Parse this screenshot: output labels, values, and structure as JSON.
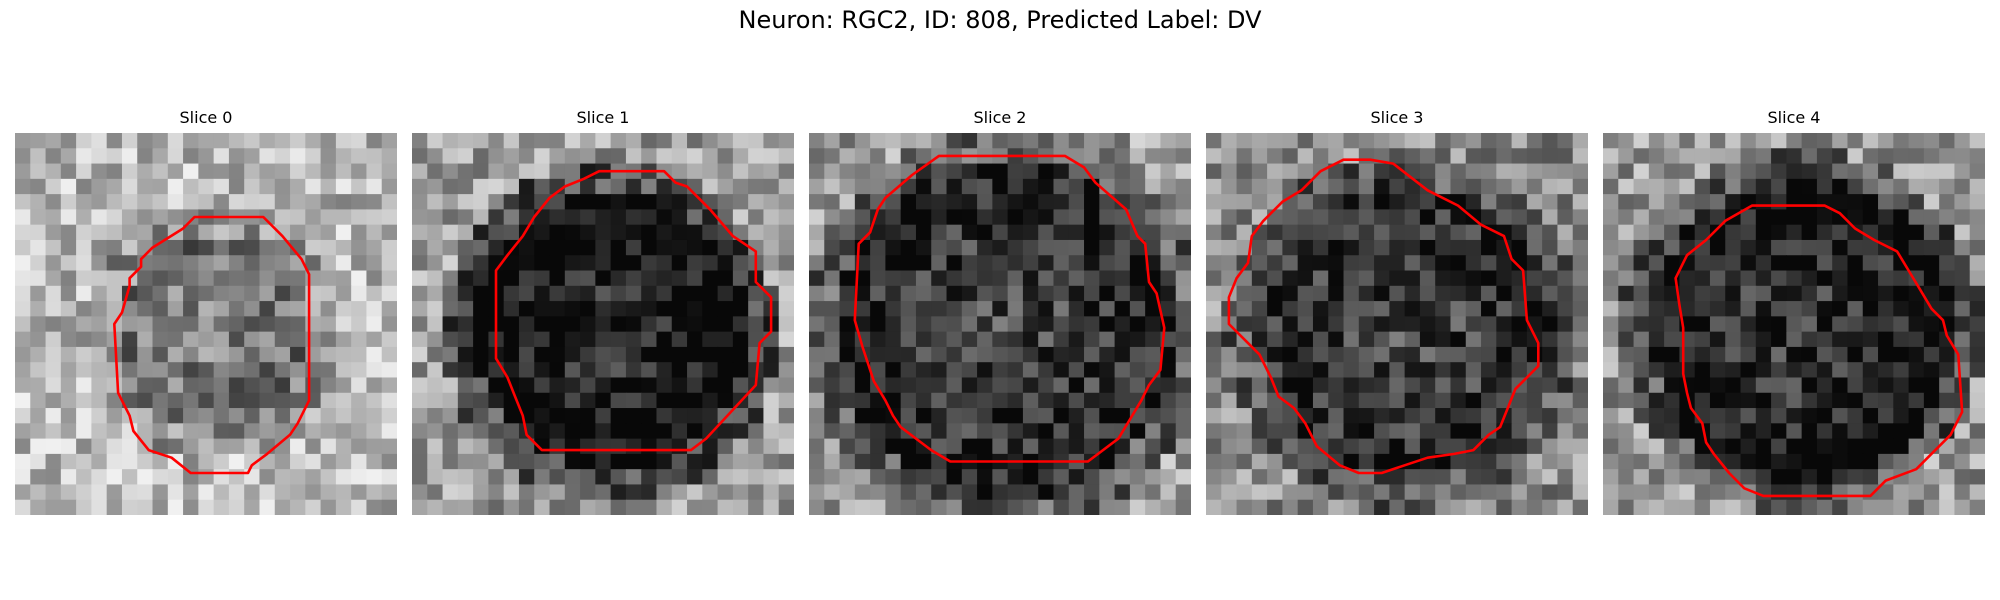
{
  "figure": {
    "title": "Neuron: RGC2, ID: 808, Predicted Label: DV"
  },
  "slices": [
    {
      "title": "Slice 0",
      "seed": 11,
      "cell_r": 0.26,
      "cell_dark": 0.3,
      "bg": 0.72,
      "contour": [
        [
          0.47,
          0.22
        ],
        [
          0.65,
          0.22
        ],
        [
          0.7,
          0.27
        ],
        [
          0.75,
          0.33
        ],
        [
          0.77,
          0.37
        ],
        [
          0.77,
          0.7
        ],
        [
          0.74,
          0.76
        ],
        [
          0.72,
          0.79
        ],
        [
          0.66,
          0.84
        ],
        [
          0.62,
          0.87
        ],
        [
          0.61,
          0.89
        ],
        [
          0.46,
          0.89
        ],
        [
          0.41,
          0.85
        ],
        [
          0.35,
          0.83
        ],
        [
          0.31,
          0.78
        ],
        [
          0.3,
          0.74
        ],
        [
          0.27,
          0.68
        ],
        [
          0.26,
          0.5
        ],
        [
          0.28,
          0.47
        ],
        [
          0.3,
          0.4
        ],
        [
          0.3,
          0.38
        ],
        [
          0.33,
          0.35
        ],
        [
          0.33,
          0.33
        ],
        [
          0.36,
          0.3
        ],
        [
          0.44,
          0.25
        ]
      ]
    },
    {
      "title": "Slice 1",
      "seed": 29,
      "cell_r": 0.36,
      "cell_dark": 0.65,
      "bg": 0.62,
      "contour": [
        [
          0.49,
          0.1
        ],
        [
          0.66,
          0.1
        ],
        [
          0.69,
          0.13
        ],
        [
          0.72,
          0.14
        ],
        [
          0.75,
          0.17
        ],
        [
          0.78,
          0.2
        ],
        [
          0.84,
          0.27
        ],
        [
          0.9,
          0.31
        ],
        [
          0.9,
          0.39
        ],
        [
          0.94,
          0.43
        ],
        [
          0.94,
          0.52
        ],
        [
          0.91,
          0.55
        ],
        [
          0.9,
          0.66
        ],
        [
          0.77,
          0.8
        ],
        [
          0.73,
          0.83
        ],
        [
          0.67,
          0.83
        ],
        [
          0.34,
          0.83
        ],
        [
          0.3,
          0.79
        ],
        [
          0.29,
          0.74
        ],
        [
          0.27,
          0.69
        ],
        [
          0.25,
          0.64
        ],
        [
          0.22,
          0.59
        ],
        [
          0.22,
          0.36
        ],
        [
          0.25,
          0.32
        ],
        [
          0.29,
          0.27
        ],
        [
          0.32,
          0.22
        ],
        [
          0.36,
          0.17
        ],
        [
          0.4,
          0.14
        ],
        [
          0.45,
          0.12
        ]
      ]
    },
    {
      "title": "Slice 2",
      "seed": 47,
      "cell_r": 0.45,
      "cell_dark": 0.5,
      "bg": 0.62,
      "contour": [
        [
          0.34,
          0.06
        ],
        [
          0.67,
          0.06
        ],
        [
          0.72,
          0.09
        ],
        [
          0.75,
          0.13
        ],
        [
          0.83,
          0.2
        ],
        [
          0.86,
          0.27
        ],
        [
          0.88,
          0.29
        ],
        [
          0.89,
          0.39
        ],
        [
          0.91,
          0.42
        ],
        [
          0.93,
          0.51
        ],
        [
          0.92,
          0.62
        ],
        [
          0.89,
          0.66
        ],
        [
          0.87,
          0.7
        ],
        [
          0.84,
          0.75
        ],
        [
          0.81,
          0.8
        ],
        [
          0.73,
          0.86
        ],
        [
          0.68,
          0.86
        ],
        [
          0.37,
          0.86
        ],
        [
          0.32,
          0.83
        ],
        [
          0.28,
          0.8
        ],
        [
          0.24,
          0.77
        ],
        [
          0.22,
          0.74
        ],
        [
          0.2,
          0.7
        ],
        [
          0.17,
          0.65
        ],
        [
          0.14,
          0.56
        ],
        [
          0.12,
          0.49
        ],
        [
          0.13,
          0.29
        ],
        [
          0.16,
          0.26
        ],
        [
          0.18,
          0.2
        ],
        [
          0.2,
          0.17
        ],
        [
          0.27,
          0.11
        ]
      ]
    },
    {
      "title": "Slice 3",
      "seed": 83,
      "cell_r": 0.39,
      "cell_dark": 0.4,
      "bg": 0.55,
      "contour": [
        [
          0.36,
          0.07
        ],
        [
          0.43,
          0.07
        ],
        [
          0.49,
          0.08
        ],
        [
          0.58,
          0.15
        ],
        [
          0.66,
          0.19
        ],
        [
          0.72,
          0.24
        ],
        [
          0.78,
          0.27
        ],
        [
          0.8,
          0.33
        ],
        [
          0.83,
          0.36
        ],
        [
          0.84,
          0.49
        ],
        [
          0.87,
          0.55
        ],
        [
          0.87,
          0.61
        ],
        [
          0.84,
          0.64
        ],
        [
          0.81,
          0.67
        ],
        [
          0.79,
          0.72
        ],
        [
          0.77,
          0.77
        ],
        [
          0.74,
          0.79
        ],
        [
          0.7,
          0.83
        ],
        [
          0.65,
          0.84
        ],
        [
          0.58,
          0.85
        ],
        [
          0.52,
          0.87
        ],
        [
          0.46,
          0.89
        ],
        [
          0.4,
          0.89
        ],
        [
          0.35,
          0.87
        ],
        [
          0.29,
          0.82
        ],
        [
          0.26,
          0.76
        ],
        [
          0.23,
          0.72
        ],
        [
          0.19,
          0.69
        ],
        [
          0.17,
          0.64
        ],
        [
          0.14,
          0.58
        ],
        [
          0.11,
          0.55
        ],
        [
          0.06,
          0.5
        ],
        [
          0.06,
          0.43
        ],
        [
          0.08,
          0.38
        ],
        [
          0.11,
          0.34
        ],
        [
          0.12,
          0.27
        ],
        [
          0.15,
          0.23
        ],
        [
          0.2,
          0.18
        ],
        [
          0.25,
          0.15
        ],
        [
          0.3,
          0.1
        ]
      ]
    },
    {
      "title": "Slice 4",
      "seed": 101,
      "cell_r": 0.4,
      "cell_dark": 0.55,
      "bg": 0.6,
      "contour": [
        [
          0.39,
          0.19
        ],
        [
          0.58,
          0.19
        ],
        [
          0.62,
          0.21
        ],
        [
          0.66,
          0.25
        ],
        [
          0.71,
          0.28
        ],
        [
          0.77,
          0.31
        ],
        [
          0.8,
          0.36
        ],
        [
          0.83,
          0.41
        ],
        [
          0.86,
          0.46
        ],
        [
          0.89,
          0.49
        ],
        [
          0.9,
          0.53
        ],
        [
          0.93,
          0.58
        ],
        [
          0.94,
          0.73
        ],
        [
          0.91,
          0.79
        ],
        [
          0.87,
          0.83
        ],
        [
          0.82,
          0.88
        ],
        [
          0.74,
          0.91
        ],
        [
          0.7,
          0.95
        ],
        [
          0.6,
          0.95
        ],
        [
          0.42,
          0.95
        ],
        [
          0.37,
          0.93
        ],
        [
          0.33,
          0.89
        ],
        [
          0.29,
          0.84
        ],
        [
          0.27,
          0.81
        ],
        [
          0.26,
          0.76
        ],
        [
          0.23,
          0.72
        ],
        [
          0.22,
          0.68
        ],
        [
          0.21,
          0.63
        ],
        [
          0.21,
          0.51
        ],
        [
          0.2,
          0.45
        ],
        [
          0.19,
          0.38
        ],
        [
          0.22,
          0.32
        ],
        [
          0.27,
          0.28
        ],
        [
          0.32,
          0.23
        ]
      ]
    }
  ]
}
